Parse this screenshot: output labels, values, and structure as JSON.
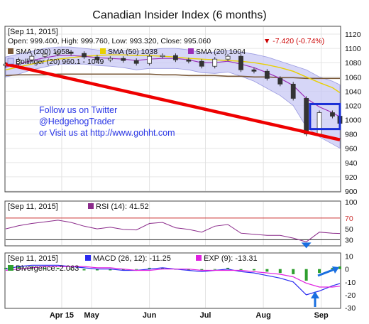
{
  "title": "Canadian Insider Index (6 months)",
  "colors": {
    "up": "#2f8f2f",
    "down": "#cc0000",
    "candle_outline": "#333333",
    "sma200": "#7a5a3a",
    "sma50": "#e8d000",
    "sma20": "#9a2fb8",
    "bollinger_fill": "#c8c8f4",
    "trendline": "#ee0000",
    "highlight_box": "#1a2fd6",
    "arrow": "#1a6fe0",
    "rsi_line": "#8a2a8a",
    "rsi_level_70": "#cc3333",
    "rsi_level_30": "#2a2a2a",
    "macd_line": "#2a2af0",
    "exp_line": "#e020e0",
    "divergence": "#2f9f2f"
  },
  "main_panel": {
    "date_label": "[Sep 11, 2015]",
    "ohlc_text": "Open: 999.400, High: 999.760, Low: 993.320, Close: 995.060",
    "change_text": "▼ -7.420 (-0.74%)",
    "legend": [
      {
        "label": "SMA (200) 1058",
        "color": "#7a5a3a"
      },
      {
        "label": "SMA (50) 1038",
        "color": "#e8d000"
      },
      {
        "label": "SMA (20) 1004",
        "color": "#9a2fb8"
      },
      {
        "label": "Bollinger (20) 960.1 - 1049",
        "color": "#c8c8f4"
      }
    ],
    "annotation_lines": [
      "Follow us on Twitter",
      "@HedgehogTrader",
      "or Visit us at http://www.gohht.com"
    ],
    "y_ticks": [
      900,
      920,
      940,
      960,
      980,
      1000,
      1020,
      1040,
      1060,
      1080,
      1100,
      1120
    ],
    "ylim": [
      900,
      1130
    ]
  },
  "rsi_panel": {
    "date_label": "[Sep 11, 2015]",
    "legend": "RSI (14): 41.52",
    "y_ticks": [
      30,
      50,
      70,
      100
    ],
    "levels": [
      30,
      70
    ],
    "ylim": [
      20,
      100
    ]
  },
  "macd_panel": {
    "date_label": "[Sep 11, 2015]",
    "legend_macd": "MACD (26, 12): -11.25",
    "legend_exp": "EXP (9): -13.31",
    "legend_divergence": "Divergence: 2.063",
    "y_ticks": [
      -30,
      -20,
      -10,
      0,
      10
    ],
    "ylim": [
      -30,
      12
    ]
  },
  "x_axis": {
    "labels": [
      {
        "label": "Apr 15",
        "date": "2015-04-15"
      },
      {
        "label": "May",
        "date": "2015-05-01"
      },
      {
        "label": "Jun",
        "date": "2015-06-01"
      },
      {
        "label": "Jul",
        "date": "2015-07-01"
      },
      {
        "label": "Aug",
        "date": "2015-08-01"
      },
      {
        "label": "Sep",
        "date": "2015-09-01"
      }
    ]
  },
  "chart_data": {
    "type": "line",
    "title": "Canadian Insider Index (6 months)",
    "x_range": [
      "2015-03-16",
      "2015-09-11"
    ],
    "price": {
      "dates": [
        "2015-03-16",
        "2015-03-23",
        "2015-03-30",
        "2015-04-06",
        "2015-04-13",
        "2015-04-20",
        "2015-04-27",
        "2015-05-04",
        "2015-05-11",
        "2015-05-18",
        "2015-05-25",
        "2015-06-01",
        "2015-06-08",
        "2015-06-15",
        "2015-06-22",
        "2015-06-29",
        "2015-07-06",
        "2015-07-13",
        "2015-07-20",
        "2015-07-27",
        "2015-08-03",
        "2015-08-10",
        "2015-08-17",
        "2015-08-24",
        "2015-08-31",
        "2015-09-07",
        "2015-09-11"
      ],
      "close": [
        1078,
        1084,
        1089,
        1092,
        1095,
        1093,
        1088,
        1084,
        1086,
        1083,
        1079,
        1089,
        1090,
        1084,
        1082,
        1075,
        1085,
        1089,
        1070,
        1068,
        1058,
        1050,
        1030,
        980,
        1010,
        1005,
        995
      ],
      "sma200": [
        1062,
        1063,
        1063,
        1063,
        1064,
        1064,
        1064,
        1064,
        1064,
        1064,
        1064,
        1064,
        1063,
        1063,
        1062,
        1062,
        1062,
        1061,
        1061,
        1060,
        1060,
        1059,
        1059,
        1058,
        1058,
        1058,
        1058
      ],
      "sma50": [
        1070,
        1074,
        1078,
        1082,
        1085,
        1087,
        1089,
        1090,
        1091,
        1091,
        1090,
        1090,
        1089,
        1088,
        1086,
        1085,
        1084,
        1083,
        1082,
        1080,
        1077,
        1073,
        1068,
        1060,
        1052,
        1045,
        1038
      ],
      "sma20": [
        1074,
        1078,
        1083,
        1087,
        1090,
        1090,
        1089,
        1087,
        1086,
        1085,
        1083,
        1085,
        1086,
        1086,
        1084,
        1080,
        1080,
        1082,
        1078,
        1073,
        1066,
        1058,
        1048,
        1030,
        1018,
        1010,
        1004
      ],
      "bollinger_upper": [
        1088,
        1092,
        1096,
        1100,
        1102,
        1102,
        1100,
        1098,
        1097,
        1097,
        1096,
        1098,
        1100,
        1100,
        1098,
        1094,
        1095,
        1097,
        1095,
        1092,
        1088,
        1082,
        1076,
        1070,
        1060,
        1054,
        1049
      ],
      "bollinger_lower": [
        1060,
        1064,
        1070,
        1074,
        1078,
        1078,
        1078,
        1076,
        1075,
        1073,
        1070,
        1072,
        1072,
        1072,
        1070,
        1066,
        1065,
        1067,
        1061,
        1054,
        1044,
        1034,
        1020,
        990,
        976,
        966,
        960
      ]
    },
    "trendline": {
      "from": {
        "date": "2015-03-16",
        "value": 1078
      },
      "to": {
        "date": "2015-09-11",
        "value": 972
      }
    },
    "highlight": {
      "date_from": "2015-08-26",
      "date_to": "2015-09-11",
      "value_low": 987,
      "value_high": 1022
    },
    "rsi": {
      "dates": [
        "2015-03-16",
        "2015-03-23",
        "2015-03-30",
        "2015-04-06",
        "2015-04-13",
        "2015-04-20",
        "2015-04-27",
        "2015-05-04",
        "2015-05-11",
        "2015-05-18",
        "2015-05-25",
        "2015-06-01",
        "2015-06-08",
        "2015-06-15",
        "2015-06-22",
        "2015-06-29",
        "2015-07-06",
        "2015-07-13",
        "2015-07-20",
        "2015-07-27",
        "2015-08-03",
        "2015-08-10",
        "2015-08-17",
        "2015-08-24",
        "2015-08-31",
        "2015-09-07",
        "2015-09-11"
      ],
      "values": [
        50,
        56,
        60,
        63,
        66,
        62,
        55,
        50,
        53,
        49,
        48,
        60,
        62,
        52,
        49,
        44,
        55,
        58,
        42,
        40,
        38,
        38,
        33,
        26,
        44,
        42,
        41.52
      ]
    },
    "macd": {
      "dates": [
        "2015-03-16",
        "2015-03-23",
        "2015-03-30",
        "2015-04-06",
        "2015-04-13",
        "2015-04-20",
        "2015-04-27",
        "2015-05-04",
        "2015-05-11",
        "2015-05-18",
        "2015-05-25",
        "2015-06-01",
        "2015-06-08",
        "2015-06-15",
        "2015-06-22",
        "2015-06-29",
        "2015-07-06",
        "2015-07-13",
        "2015-07-20",
        "2015-07-27",
        "2015-08-03",
        "2015-08-10",
        "2015-08-17",
        "2015-08-24",
        "2015-08-31",
        "2015-09-07",
        "2015-09-11"
      ],
      "macd": [
        0,
        2,
        3,
        3,
        3,
        2,
        1,
        0,
        0,
        -1,
        -1,
        0,
        1,
        0,
        -1,
        -2,
        -1,
        0,
        -2,
        -3,
        -5,
        -7,
        -10,
        -20,
        -17,
        -13,
        -11.25
      ],
      "exp": [
        -1,
        0,
        1,
        2,
        2,
        2,
        2,
        1,
        1,
        0,
        -1,
        -1,
        0,
        0,
        0,
        -1,
        -1,
        -1,
        -1,
        -2,
        -3,
        -4,
        -6,
        -11,
        -14,
        -14,
        -13.31
      ],
      "divergence": [
        1,
        2,
        2,
        1,
        1,
        0,
        -1,
        -1,
        -1,
        -1,
        0,
        1,
        1,
        0,
        -1,
        -1,
        0,
        1,
        -1,
        -1,
        -2,
        -3,
        -4,
        -9,
        -3,
        1,
        2.063
      ]
    }
  }
}
